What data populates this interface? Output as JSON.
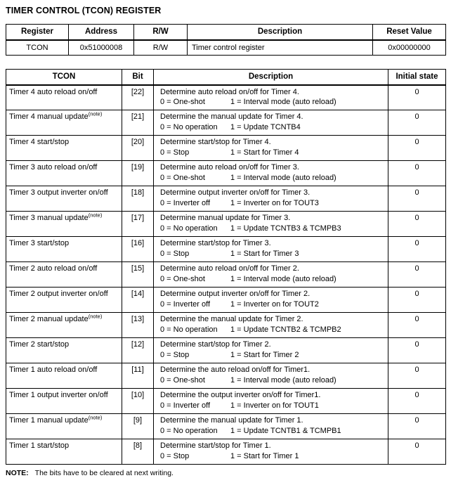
{
  "title": "TIMER CONTROL (TCON) REGISTER",
  "register_table": {
    "headers": [
      "Register",
      "Address",
      "R/W",
      "Description",
      "Reset Value"
    ],
    "row": {
      "register": "TCON",
      "address": "0x51000008",
      "rw": "R/W",
      "description": "Timer control register",
      "reset_value": "0x00000000"
    }
  },
  "bits_table": {
    "headers": [
      "TCON",
      "Bit",
      "Description",
      "Initial state"
    ],
    "rows": [
      {
        "name": "Timer 4 auto reload on/off",
        "note": "",
        "bit": "[22]",
        "line1": "Determine auto reload on/off for Timer 4.",
        "opt0": "0 = One-shot",
        "opt1": "1 = Interval mode (auto reload)",
        "initial": "0"
      },
      {
        "name": "Timer 4 manual update",
        "note": "(note)",
        "bit": "[21]",
        "line1": "Determine the manual update for Timer 4.",
        "opt0": "0 = No operation",
        "opt1": "1 = Update TCNTB4",
        "initial": "0"
      },
      {
        "name": "Timer 4 start/stop",
        "note": "",
        "bit": "[20]",
        "line1": "Determine start/stop for Timer 4.",
        "opt0": "0 = Stop",
        "opt1": "1 = Start for Timer 4",
        "initial": "0"
      },
      {
        "name": "Timer 3 auto reload on/off",
        "note": "",
        "bit": "[19]",
        "line1": "Determine auto reload on/off for Timer 3.",
        "opt0": "0 = One-shot",
        "opt1": "1 = Interval mode (auto reload)",
        "initial": "0"
      },
      {
        "name": "Timer 3 output inverter on/off",
        "note": "",
        "bit": "[18]",
        "line1": "Determine output inverter on/off for Timer 3.",
        "opt0": "0 = Inverter off",
        "opt1": "1 = Inverter on for TOUT3",
        "initial": "0"
      },
      {
        "name": "Timer 3 manual update",
        "note": "(note)",
        "bit": "[17]",
        "line1": "Determine manual update for Timer 3.",
        "opt0": "0 = No operation",
        "opt1": "1 = Update TCNTB3 & TCMPB3",
        "initial": "0"
      },
      {
        "name": "Timer 3 start/stop",
        "note": "",
        "bit": "[16]",
        "line1": "Determine start/stop for Timer 3.",
        "opt0": "0 = Stop",
        "opt1": "1 = Start for Timer 3",
        "initial": "0"
      },
      {
        "name": "Timer 2 auto reload on/off",
        "note": "",
        "bit": "[15]",
        "line1": "Determine auto reload on/off for Timer 2.",
        "opt0": "0 = One-shot",
        "opt1": "1 = Interval mode (auto reload)",
        "initial": "0"
      },
      {
        "name": "Timer 2 output inverter on/off",
        "note": "",
        "bit": "[14]",
        "line1": "Determine output inverter on/off for Timer 2.",
        "opt0": "0 = Inverter off",
        "opt1": "1 = Inverter on for TOUT2",
        "initial": "0"
      },
      {
        "name": "Timer 2 manual update",
        "note": "(note)",
        "bit": "[13]",
        "line1": "Determine the manual update for Timer 2.",
        "opt0": "0 = No operation",
        "opt1": "1 = Update TCNTB2 & TCMPB2",
        "initial": "0"
      },
      {
        "name": "Timer 2 start/stop",
        "note": "",
        "bit": "[12]",
        "line1": "Determine start/stop for Timer 2.",
        "opt0": "0 = Stop",
        "opt1": "1 = Start for Timer 2",
        "initial": "0"
      },
      {
        "name": "Timer 1 auto reload on/off",
        "note": "",
        "bit": "[11]",
        "line1": "Determine the auto reload on/off for Timer1.",
        "opt0": "0 = One-shot",
        "opt1": "1 = Interval mode (auto reload)",
        "initial": "0"
      },
      {
        "name": "Timer 1 output inverter on/off",
        "note": "",
        "bit": "[10]",
        "line1": "Determine the output inverter on/off for Timer1.",
        "opt0": "0 = Inverter off",
        "opt1": "1 = Inverter on for TOUT1",
        "initial": "0"
      },
      {
        "name": "Timer 1 manual update",
        "note": "(note)",
        "bit": "[9]",
        "line1": "Determine the manual update for Timer 1.",
        "opt0": "0 = No operation",
        "opt1": "1 = Update TCNTB1 & TCMPB1",
        "initial": "0"
      },
      {
        "name": "Timer 1 start/stop",
        "note": "",
        "bit": "[8]",
        "line1": "Determine start/stop for Timer 1.",
        "opt0": "0 = Stop",
        "opt1": "1 = Start for Timer 1",
        "initial": "0"
      }
    ]
  },
  "footnote": {
    "label": "NOTE:",
    "text": "The bits have to be cleared at next writing."
  },
  "colors": {
    "text": "#000000",
    "border": "#000000",
    "background": "#ffffff"
  }
}
